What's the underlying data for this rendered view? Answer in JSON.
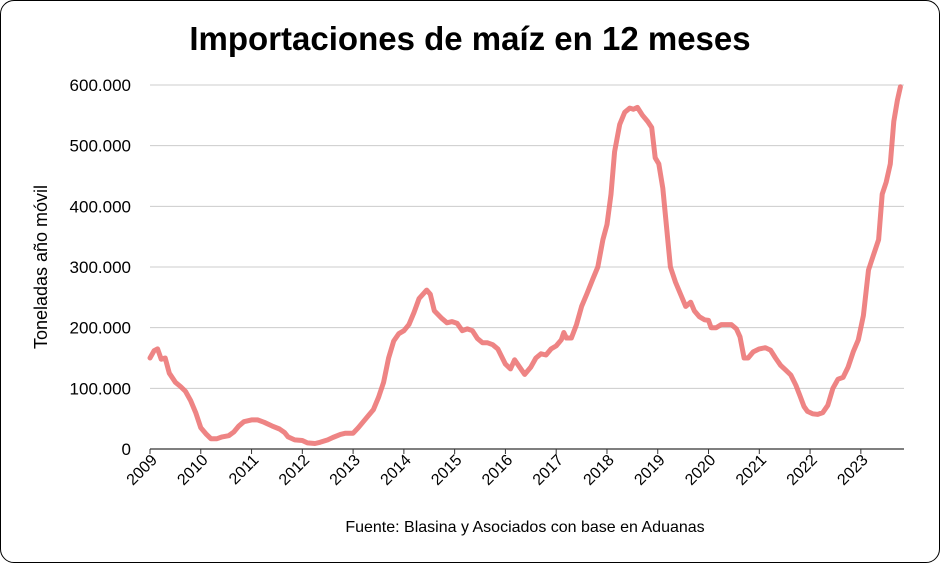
{
  "chart_data": {
    "type": "line",
    "title": "Importaciones de maíz en 12 meses",
    "ylabel": "Toneladas año móvil",
    "xlabel": "",
    "source": "Fuente: Blasina y Asociados con base en Aduanas",
    "ylim": [
      0,
      600000
    ],
    "xlim": [
      2009,
      2023.85
    ],
    "yticks": [
      0,
      100000,
      200000,
      300000,
      400000,
      500000,
      600000
    ],
    "ytick_labels": [
      "0",
      "100.000",
      "200.000",
      "300.000",
      "400.000",
      "500.000",
      "600.000"
    ],
    "xticks": [
      2009,
      2010,
      2011,
      2012,
      2013,
      2014,
      2015,
      2016,
      2017,
      2018,
      2019,
      2020,
      2021,
      2022,
      2023
    ],
    "xtick_labels": [
      "2009",
      "2010",
      "2011",
      "2012",
      "2013",
      "2014",
      "2015",
      "2016",
      "2017",
      "2018",
      "2019",
      "2020",
      "2021",
      "2022",
      "2023"
    ],
    "grid": true,
    "legend": "none",
    "series": [
      {
        "name": "",
        "color": "#eb6f6f",
        "points": [
          [
            2009.0,
            150000
          ],
          [
            2009.08,
            162000
          ],
          [
            2009.15,
            165000
          ],
          [
            2009.22,
            148000
          ],
          [
            2009.3,
            150000
          ],
          [
            2009.38,
            125000
          ],
          [
            2009.5,
            110000
          ],
          [
            2009.6,
            103000
          ],
          [
            2009.7,
            95000
          ],
          [
            2009.8,
            80000
          ],
          [
            2009.9,
            60000
          ],
          [
            2010.0,
            35000
          ],
          [
            2010.1,
            25000
          ],
          [
            2010.2,
            17000
          ],
          [
            2010.32,
            17000
          ],
          [
            2010.42,
            20000
          ],
          [
            2010.55,
            22000
          ],
          [
            2010.65,
            28000
          ],
          [
            2010.75,
            38000
          ],
          [
            2010.85,
            45000
          ],
          [
            2011.0,
            48000
          ],
          [
            2011.12,
            48000
          ],
          [
            2011.25,
            44000
          ],
          [
            2011.4,
            38000
          ],
          [
            2011.55,
            33000
          ],
          [
            2011.65,
            27000
          ],
          [
            2011.72,
            20000
          ],
          [
            2011.85,
            15000
          ],
          [
            2012.0,
            14000
          ],
          [
            2012.1,
            10000
          ],
          [
            2012.25,
            9000
          ],
          [
            2012.35,
            11000
          ],
          [
            2012.5,
            15000
          ],
          [
            2012.6,
            19000
          ],
          [
            2012.75,
            24000
          ],
          [
            2012.85,
            26000
          ],
          [
            2013.0,
            26000
          ],
          [
            2013.1,
            35000
          ],
          [
            2013.25,
            50000
          ],
          [
            2013.4,
            65000
          ],
          [
            2013.5,
            85000
          ],
          [
            2013.6,
            110000
          ],
          [
            2013.7,
            150000
          ],
          [
            2013.8,
            178000
          ],
          [
            2013.9,
            190000
          ],
          [
            2014.0,
            195000
          ],
          [
            2014.1,
            205000
          ],
          [
            2014.2,
            225000
          ],
          [
            2014.3,
            248000
          ],
          [
            2014.45,
            262000
          ],
          [
            2014.52,
            255000
          ],
          [
            2014.6,
            228000
          ],
          [
            2014.75,
            215000
          ],
          [
            2014.85,
            208000
          ],
          [
            2014.95,
            210000
          ],
          [
            2015.05,
            207000
          ],
          [
            2015.15,
            195000
          ],
          [
            2015.25,
            198000
          ],
          [
            2015.35,
            195000
          ],
          [
            2015.45,
            182000
          ],
          [
            2015.55,
            175000
          ],
          [
            2015.65,
            175000
          ],
          [
            2015.75,
            172000
          ],
          [
            2015.85,
            165000
          ],
          [
            2016.0,
            140000
          ],
          [
            2016.1,
            132000
          ],
          [
            2016.18,
            147000
          ],
          [
            2016.28,
            135000
          ],
          [
            2016.38,
            123000
          ],
          [
            2016.5,
            135000
          ],
          [
            2016.6,
            150000
          ],
          [
            2016.7,
            157000
          ],
          [
            2016.8,
            155000
          ],
          [
            2016.9,
            165000
          ],
          [
            2017.0,
            170000
          ],
          [
            2017.1,
            180000
          ],
          [
            2017.15,
            192000
          ],
          [
            2017.2,
            183000
          ],
          [
            2017.3,
            183000
          ],
          [
            2017.4,
            205000
          ],
          [
            2017.5,
            235000
          ],
          [
            2017.6,
            255000
          ],
          [
            2017.72,
            280000
          ],
          [
            2017.82,
            300000
          ],
          [
            2017.92,
            345000
          ],
          [
            2018.0,
            370000
          ],
          [
            2018.08,
            420000
          ],
          [
            2018.15,
            490000
          ],
          [
            2018.25,
            535000
          ],
          [
            2018.35,
            555000
          ],
          [
            2018.45,
            562000
          ],
          [
            2018.52,
            560000
          ],
          [
            2018.6,
            563000
          ],
          [
            2018.7,
            550000
          ],
          [
            2018.8,
            540000
          ],
          [
            2018.88,
            530000
          ],
          [
            2018.95,
            480000
          ],
          [
            2019.02,
            470000
          ],
          [
            2019.1,
            430000
          ],
          [
            2019.18,
            360000
          ],
          [
            2019.25,
            300000
          ],
          [
            2019.35,
            275000
          ],
          [
            2019.45,
            255000
          ],
          [
            2019.55,
            235000
          ],
          [
            2019.65,
            242000
          ],
          [
            2019.72,
            228000
          ],
          [
            2019.82,
            218000
          ],
          [
            2019.92,
            213000
          ],
          [
            2020.0,
            212000
          ],
          [
            2020.05,
            200000
          ],
          [
            2020.15,
            200000
          ],
          [
            2020.25,
            205000
          ],
          [
            2020.35,
            205000
          ],
          [
            2020.45,
            205000
          ],
          [
            2020.55,
            198000
          ],
          [
            2020.62,
            185000
          ],
          [
            2020.7,
            150000
          ],
          [
            2020.78,
            150000
          ],
          [
            2020.88,
            160000
          ],
          [
            2021.0,
            165000
          ],
          [
            2021.12,
            167000
          ],
          [
            2021.22,
            163000
          ],
          [
            2021.32,
            150000
          ],
          [
            2021.42,
            138000
          ],
          [
            2021.52,
            130000
          ],
          [
            2021.62,
            122000
          ],
          [
            2021.72,
            105000
          ],
          [
            2021.8,
            88000
          ],
          [
            2021.88,
            70000
          ],
          [
            2021.95,
            62000
          ],
          [
            2022.05,
            58000
          ],
          [
            2022.15,
            57000
          ],
          [
            2022.25,
            60000
          ],
          [
            2022.35,
            72000
          ],
          [
            2022.45,
            100000
          ],
          [
            2022.55,
            115000
          ],
          [
            2022.65,
            118000
          ],
          [
            2022.75,
            135000
          ],
          [
            2022.85,
            160000
          ],
          [
            2022.95,
            180000
          ],
          [
            2023.05,
            220000
          ],
          [
            2023.15,
            295000
          ],
          [
            2023.25,
            320000
          ],
          [
            2023.35,
            345000
          ],
          [
            2023.42,
            420000
          ],
          [
            2023.5,
            440000
          ],
          [
            2023.58,
            470000
          ],
          [
            2023.65,
            540000
          ],
          [
            2023.72,
            575000
          ],
          [
            2023.78,
            597000
          ]
        ]
      }
    ]
  }
}
